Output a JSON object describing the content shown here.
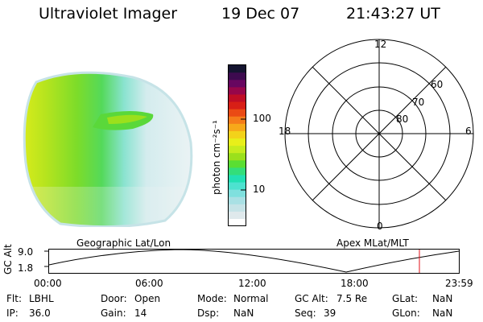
{
  "header": {
    "instrument": "Ultraviolet Imager",
    "date": "19 Dec 07",
    "time": "21:43:27 UT"
  },
  "colorbar": {
    "unit_label": "photon cm⁻²s⁻¹",
    "ticks": [
      "100",
      "10"
    ],
    "colors": [
      "#ffffff",
      "#dfe9ec",
      "#c6e3e7",
      "#a9e0e4",
      "#7fe0de",
      "#4de2cf",
      "#22e0b3",
      "#33de7a",
      "#5ade33",
      "#9be01c",
      "#c6ec1e",
      "#e8ef1a",
      "#f3d21a",
      "#f7a81a",
      "#f57c1a",
      "#ea4a14",
      "#d81f16",
      "#c00d25",
      "#97064a",
      "#670660",
      "#3d0a4f",
      "#141430"
    ]
  },
  "polar_plot": {
    "mlt_labels": {
      "top": "12",
      "left": "18",
      "right": "6",
      "bottom": "0"
    },
    "lat_labels": [
      "60",
      "70",
      "80"
    ]
  },
  "timeline": {
    "y_label": "GC Alt",
    "y_ticks": [
      "9.0",
      "1.8"
    ],
    "left_caption": "Geographic Lat/Lon",
    "right_caption": "Apex MLat/MLT",
    "x_ticks": [
      "00:00",
      "06:00",
      "12:00",
      "18:00",
      "23:59"
    ],
    "marker_time": "21:43",
    "marker_color": "#e0101a"
  },
  "status": {
    "flt_label": "Flt:",
    "flt_value": "LBHL",
    "ip_label": "IP:",
    "ip_value": "36.0",
    "door_label": "Door:",
    "door_value": "Open",
    "gain_label": "Gain:",
    "gain_value": "14",
    "mode_label": "Mode:",
    "mode_value": "Normal",
    "dsp_label": "Dsp:",
    "dsp_value": "NaN",
    "gcalt_label": "GC Alt:",
    "gcalt_value": "7.5 Re",
    "seq_label": "Seq:",
    "seq_value": "39",
    "glat_label": "GLat:",
    "glat_value": "NaN",
    "glon_label": "GLon:",
    "glon_value": "NaN"
  }
}
